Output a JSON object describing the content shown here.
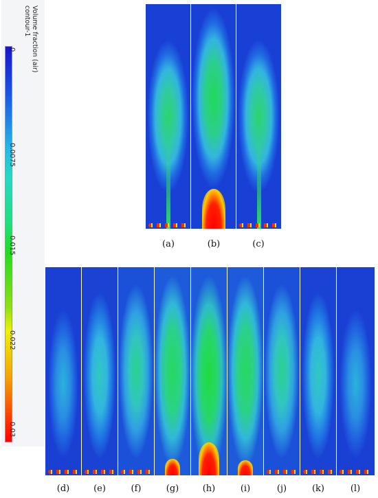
{
  "colorbar": {
    "title_line1": "Volume fraction (air)",
    "title_line2": "contour-1",
    "ticks": [
      "0",
      "0.0075",
      "0.015",
      "0.022",
      "0.03"
    ],
    "colors": [
      "#1b14c8",
      "#27b9e9",
      "#22dc1e",
      "#f0f00a",
      "#ff0000"
    ]
  },
  "panel_labels_top": [
    "(a)",
    "(b)",
    "(c)"
  ],
  "panel_labels_bottom": [
    "(d)",
    "(e)",
    "(f)",
    "(g)",
    "(h)",
    "(i)",
    "(j)",
    "(k)",
    "(l)"
  ]
}
